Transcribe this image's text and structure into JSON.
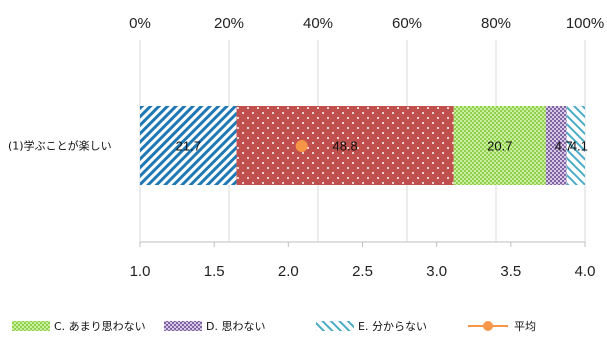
{
  "chart_data": {
    "type": "bar",
    "orientation": "horizontal-stacked-100",
    "category": "(1)学ぶことが楽しい",
    "series": [
      {
        "value": 21.7,
        "label": "21.7",
        "color": "#1f77b4",
        "pattern": "diagonal-blue"
      },
      {
        "value": 48.8,
        "label": "48.8",
        "color": "#c0504d",
        "pattern": "dots-on-red"
      },
      {
        "name": "C. あまり思わない",
        "value": 20.7,
        "label": "20.7",
        "color": "#8fd14f",
        "pattern": "green-check"
      },
      {
        "name": "D. 思わない",
        "value": 4.7,
        "label": "4.7",
        "color": "#8064a2",
        "pattern": "purple-check"
      },
      {
        "name": "E. 分からない",
        "value": 4.1,
        "label": "4.1",
        "color": "#4bacc6",
        "pattern": "light-diagonal"
      }
    ],
    "average": {
      "name": "平均",
      "value": 2.09,
      "color": "#f79646"
    },
    "top_axis": {
      "range": [
        0,
        100
      ],
      "ticks": [
        "0%",
        "20%",
        "40%",
        "60%",
        "80%",
        "100%"
      ]
    },
    "bottom_axis": {
      "range": [
        1.0,
        4.0
      ],
      "ticks": [
        "1.0",
        "1.5",
        "2.0",
        "2.5",
        "3.0",
        "3.5",
        "4.0"
      ]
    },
    "grid": true,
    "legend_position": "bottom"
  }
}
